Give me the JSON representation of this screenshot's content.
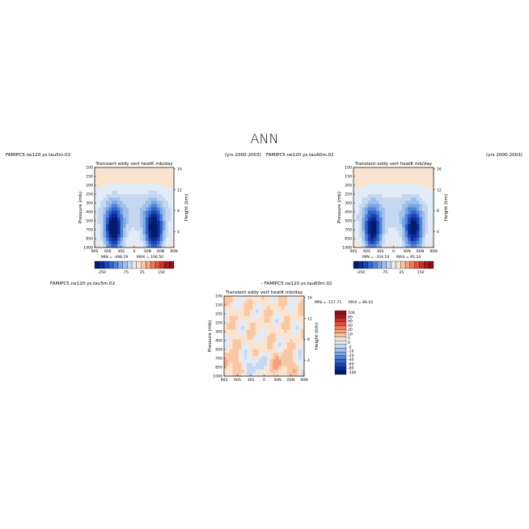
{
  "page_title": "ANN",
  "colors": {
    "page_background": "#ffffff",
    "frame": "#000000",
    "positive_scale": [
      "#fbe4cf",
      "#f9c7a3",
      "#f5a27c",
      "#ee7b55",
      "#e0533a",
      "#c8312a",
      "#a5191c",
      "#8b1014"
    ],
    "negative_scale": [
      "#e2ecf8",
      "#c6d8f0",
      "#a0c0ea",
      "#7aa6e2",
      "#4f83d9",
      "#2f62cc",
      "#1c43b4",
      "#0c2a93",
      "#041a6c"
    ]
  },
  "chart_data": [
    {
      "type": "heatmap",
      "panel": "top-left",
      "case_label": "FAMIPC5.ne120.ys.tau5m.02",
      "title": "Transient eddy vert heatK mb/day",
      "years_label": "(yrs 2000-2003)",
      "xlabel": "",
      "ylabel": "Pressure (mb)",
      "right_axis_label": "Height (km)",
      "x_ticks": [
        "90S",
        "60S",
        "30S",
        "0",
        "30N",
        "60N",
        "90N"
      ],
      "y_ticks": [
        "100",
        "150",
        "200",
        "250",
        "300",
        "400",
        "500",
        "700",
        "850",
        "1000"
      ],
      "right_ticks": [
        "16",
        "12",
        "8",
        "4"
      ],
      "min_label": "MIN = -498.29",
      "max_label": "MAX = 106.50",
      "min": -498.29,
      "max": 106.5,
      "colorbar_orientation": "horizontal",
      "colorbar_labels": [
        "-250",
        "-75",
        "25",
        "150"
      ]
    },
    {
      "type": "heatmap",
      "panel": "top-right",
      "case_label": "FAMIPC5.ne120.ys.tau60m.02",
      "title": "Transient eddy vert heatK mb/day",
      "years_label": "(yrs 2000-2003)",
      "xlabel": "",
      "ylabel": "Pressure (mb)",
      "right_axis_label": "Height (km)",
      "x_ticks": [
        "90S",
        "60S",
        "30S",
        "0",
        "30N",
        "60N",
        "90N"
      ],
      "y_ticks": [
        "100",
        "150",
        "200",
        "250",
        "300",
        "400",
        "500",
        "700",
        "850",
        "1000"
      ],
      "right_ticks": [
        "16",
        "12",
        "8",
        "4"
      ],
      "min_label": "MIN = -354.10",
      "max_label": "MAX = 95.24",
      "min": -354.1,
      "max": 95.24,
      "colorbar_orientation": "horizontal",
      "colorbar_labels": [
        "-250",
        "-75",
        "25",
        "150"
      ]
    },
    {
      "type": "heatmap",
      "panel": "bottom-difference",
      "case_label": "FAMIPC5.ne120.ys.tau5m.02",
      "title": "Transient eddy vert heatK mb/day",
      "difference_label": "- FAMIPC5.ne120.ys.tau60m.02",
      "xlabel": "",
      "ylabel": "Pressure (mb)",
      "right_axis_label": "Height (km)",
      "x_ticks": [
        "90S",
        "60S",
        "30S",
        "0",
        "30N",
        "60N",
        "90N"
      ],
      "y_ticks": [
        "100",
        "150",
        "200",
        "250",
        "300",
        "400",
        "500",
        "700",
        "850",
        "1000"
      ],
      "right_ticks": [
        "16",
        "12",
        "8",
        "4"
      ],
      "min_label": "MIN = -157.71",
      "max_label": "MAX = 86.03",
      "min": -157.71,
      "max": 86.03,
      "colorbar_orientation": "vertical",
      "colorbar_labels": [
        "100",
        "80",
        "60",
        "40",
        "20",
        "10",
        "5",
        "0",
        "-5",
        "-10",
        "-20",
        "-40",
        "-60",
        "-80",
        "-100"
      ]
    }
  ]
}
